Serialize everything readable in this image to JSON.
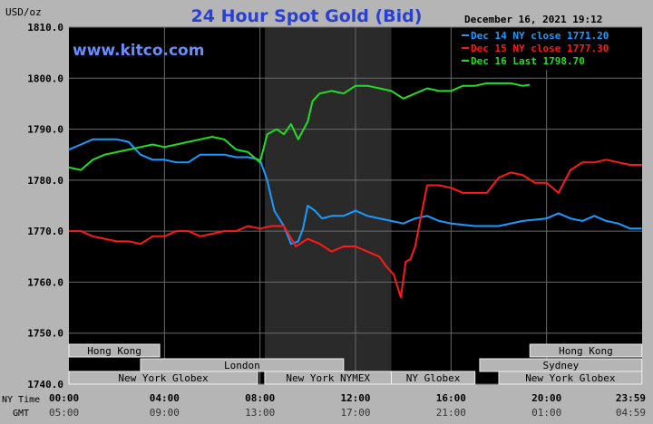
{
  "title": "24 Hour Spot Gold (Bid)",
  "unit_label": "USD/oz",
  "timestamp": "December 16, 2021 19:12",
  "watermark": "www.kitco.com",
  "y_ticks": [
    "1810.0",
    "1800.0",
    "1790.0",
    "1780.0",
    "1770.0",
    "1760.0",
    "1750.0",
    "1740.0"
  ],
  "row_labels": {
    "ny_time": "NY Time",
    "gmt": "GMT"
  },
  "ny_time_ticks": [
    "00:00",
    "04:00",
    "08:00",
    "12:00",
    "16:00",
    "20:00",
    "23:59"
  ],
  "gmt_ticks": [
    "05:00",
    "09:00",
    "13:00",
    "17:00",
    "21:00",
    "01:00",
    "04:59"
  ],
  "legend": [
    {
      "label": "Dec 14 NY close 1771.20",
      "color": "#1a9bff"
    },
    {
      "label": "Dec 15 NY close 1777.30",
      "color": "#ff1a1a"
    },
    {
      "label": "Dec 16 Last 1798.70",
      "color": "#22dd22"
    }
  ],
  "market_sessions": [
    {
      "name": "Hong Kong",
      "row": 0,
      "start": 0,
      "end": 3.8
    },
    {
      "name": "London",
      "row": 1,
      "start": 3,
      "end": 11.5
    },
    {
      "name": "New York Globex",
      "row": 2,
      "start": 0,
      "end": 7.9
    },
    {
      "name": "New York NYMEX",
      "row": 2,
      "start": 8.2,
      "end": 13.5
    },
    {
      "name": "NY Globex",
      "row": 2,
      "start": 13.5,
      "end": 17.0
    },
    {
      "name": "Hong Kong",
      "row": 0,
      "start": 19.3,
      "end": 23.99
    },
    {
      "name": "Sydney",
      "row": 1,
      "start": 17.2,
      "end": 23.99
    },
    {
      "name": "New York Globex",
      "row": 2,
      "start": 18.0,
      "end": 23.99
    }
  ],
  "colors": {
    "background": "#b5b5b5",
    "plot": "#000000",
    "shade": "#2a2a2a",
    "grid": "#6a6a6a",
    "title": "#2a3fd6",
    "watermark": "#6b8cff"
  },
  "chart_data": {
    "type": "line",
    "title": "24 Hour Spot Gold (Bid)",
    "xlabel": "NY Time",
    "ylabel": "USD/oz",
    "xlim": [
      0,
      24
    ],
    "ylim": [
      1740,
      1810
    ],
    "x_unit": "hours (NY time)",
    "grid": true,
    "shaded_region": [
      8.2,
      13.5
    ],
    "legend_position": "top-right",
    "series": [
      {
        "name": "Dec 14 NY close 1771.20",
        "color": "#1a9bff",
        "x": [
          0,
          0.5,
          1,
          1.5,
          2,
          2.5,
          3,
          3.5,
          4,
          4.5,
          5,
          5.5,
          6,
          6.5,
          7,
          7.5,
          8,
          8.3,
          8.6,
          9,
          9.3,
          9.6,
          9.8,
          10,
          10.3,
          10.6,
          11,
          11.5,
          12,
          12.5,
          13,
          13.5,
          14,
          14.5,
          15,
          15.5,
          16,
          17,
          18,
          19,
          20,
          20.5,
          21,
          21.5,
          22,
          22.5,
          23,
          23.5,
          23.99
        ],
        "y": [
          1786,
          1787,
          1788,
          1788,
          1788,
          1787.5,
          1785,
          1784,
          1784,
          1783.5,
          1783.5,
          1785,
          1785,
          1785,
          1784.5,
          1784.5,
          1784,
          1780,
          1774,
          1771,
          1767.5,
          1768,
          1770.5,
          1775,
          1774,
          1772.5,
          1773,
          1773,
          1774,
          1773,
          1772.5,
          1772,
          1771.5,
          1772.5,
          1773,
          1772,
          1771.5,
          1771,
          1771,
          1772,
          1772.5,
          1773.5,
          1772.5,
          1772,
          1773,
          1772,
          1771.5,
          1770.5,
          1770.5
        ]
      },
      {
        "name": "Dec 15 NY close 1777.30",
        "color": "#ff1a1a",
        "x": [
          0,
          0.5,
          1,
          1.5,
          2,
          2.5,
          3,
          3.5,
          4,
          4.5,
          5,
          5.5,
          6,
          6.5,
          7,
          7.5,
          8,
          8.5,
          9,
          9.5,
          10,
          10.5,
          11,
          11.5,
          12,
          12.5,
          13,
          13.3,
          13.6,
          13.9,
          14.1,
          14.3,
          14.5,
          14.7,
          15,
          15.5,
          16,
          16.5,
          17,
          17.5,
          18,
          18.5,
          19,
          19.5,
          20,
          20.5,
          21,
          21.5,
          22,
          22.5,
          23,
          23.5,
          23.99
        ],
        "y": [
          1770,
          1770,
          1769,
          1768.5,
          1768,
          1768,
          1767.5,
          1769,
          1769,
          1770,
          1770,
          1769,
          1769.5,
          1770,
          1770,
          1771,
          1770.5,
          1771,
          1771,
          1767,
          1768.5,
          1767.5,
          1766,
          1767,
          1767,
          1766,
          1765,
          1763,
          1761.5,
          1757,
          1764,
          1764.5,
          1767,
          1772,
          1779,
          1779,
          1778.5,
          1777.5,
          1777.5,
          1777.5,
          1780.5,
          1781.5,
          1781,
          1779.5,
          1779.5,
          1777.5,
          1782,
          1783.5,
          1783.5,
          1784,
          1783.5,
          1783,
          1783
        ]
      },
      {
        "name": "Dec 16 Last 1798.70",
        "color": "#22dd22",
        "x": [
          0,
          0.5,
          1,
          1.5,
          2,
          2.5,
          3,
          3.5,
          4,
          4.5,
          5,
          5.5,
          6,
          6.5,
          7,
          7.5,
          8,
          8.3,
          8.7,
          9,
          9.3,
          9.6,
          10,
          10.2,
          10.5,
          11,
          11.5,
          12,
          12.5,
          13,
          13.5,
          14,
          14.5,
          15,
          15.5,
          16,
          16.5,
          17,
          17.5,
          18,
          18.5,
          19.0,
          19.3
        ],
        "y": [
          1782.5,
          1782,
          1784,
          1785,
          1785.5,
          1786,
          1786.5,
          1787,
          1786.5,
          1787,
          1787.5,
          1788,
          1788.5,
          1788,
          1786,
          1785.5,
          1783.5,
          1789,
          1790,
          1789,
          1791,
          1788,
          1791.5,
          1795.5,
          1797,
          1797.5,
          1797,
          1798.5,
          1798.5,
          1798,
          1797.5,
          1796,
          1797,
          1798,
          1797.5,
          1797.5,
          1798.5,
          1798.5,
          1799,
          1799,
          1799,
          1798.5,
          1798.7
        ]
      }
    ]
  }
}
